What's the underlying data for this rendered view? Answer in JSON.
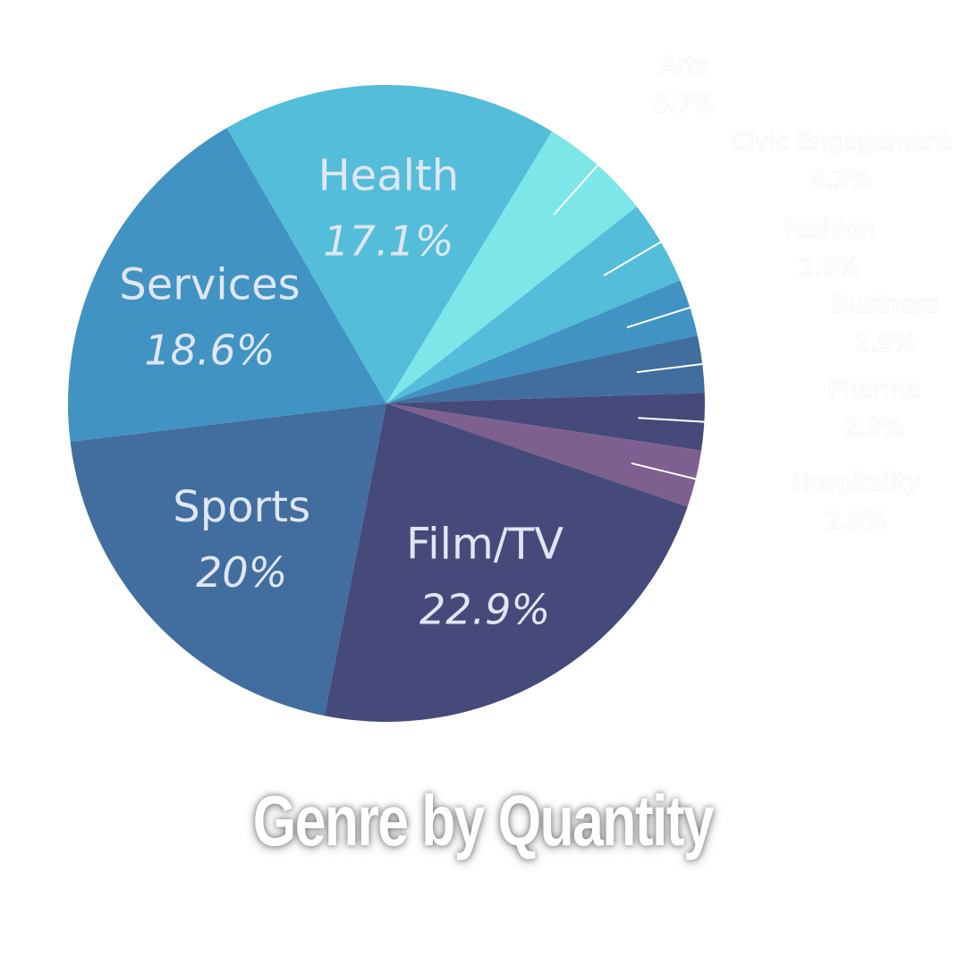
{
  "chart_data": {
    "type": "pie",
    "title": "Genre by Quantity",
    "slices": [
      {
        "label": "Health",
        "value": 17.1,
        "display": "17.1%",
        "color": "#54bdd9",
        "label_style": "inside"
      },
      {
        "label": "Arts",
        "value": 5.7,
        "display": "5.7%",
        "color": "#7de6e9",
        "label_style": "outside"
      },
      {
        "label": "Civic Engagement",
        "value": 4.3,
        "display": "4.3%",
        "color": "#54bdd9",
        "label_style": "outside"
      },
      {
        "label": "Fashion",
        "value": 2.9,
        "display": "2.9%",
        "color": "#4193c3",
        "label_style": "outside"
      },
      {
        "label": "Business",
        "value": 2.9,
        "display": "2.9%",
        "color": "#416d9f",
        "label_style": "outside"
      },
      {
        "label": "Pharma",
        "value": 2.9,
        "display": "2.9%",
        "color": "#464a7b",
        "label_style": "outside"
      },
      {
        "label": "Hospitality",
        "value": 2.9,
        "display": "2.9%",
        "color": "#7d608f",
        "label_style": "outside"
      },
      {
        "label": "Film/TV",
        "value": 22.9,
        "display": "22.9%",
        "color": "#464a7b",
        "label_style": "inside"
      },
      {
        "label": "Sports",
        "value": 20,
        "display": "20%",
        "color": "#416d9f",
        "label_style": "inside"
      },
      {
        "label": "Services",
        "value": 18.6,
        "display": "18.6%",
        "color": "#4193c3",
        "label_style": "inside"
      }
    ],
    "legend": "none"
  }
}
